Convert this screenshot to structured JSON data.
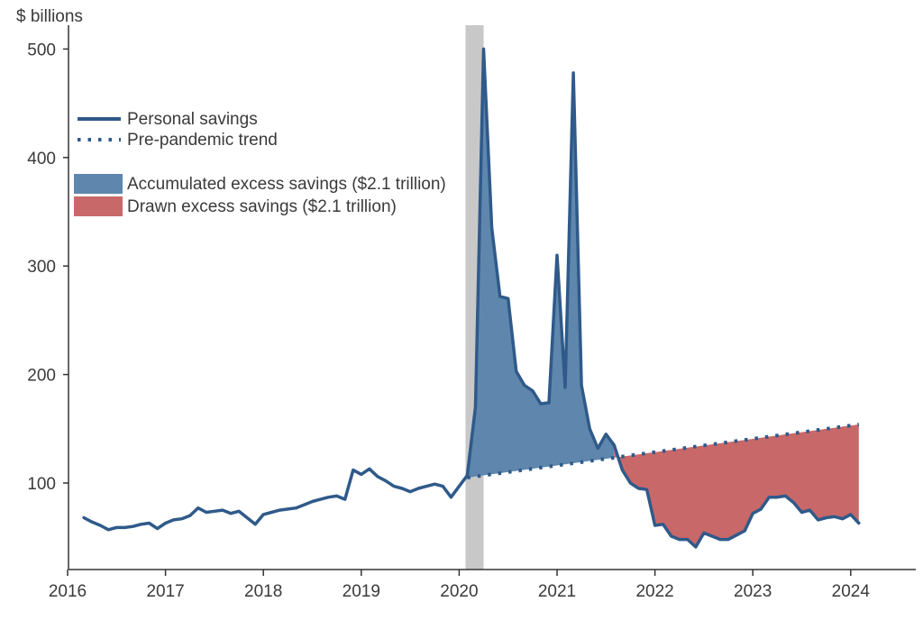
{
  "chart_data": {
    "type": "line",
    "ylabel": "$ billions",
    "ylim": [
      20,
      520
    ],
    "xlim": [
      "2015-12",
      "2024-04"
    ],
    "yticks": [
      100,
      200,
      300,
      400,
      500
    ],
    "xticks": [
      "2016",
      "2017",
      "2018",
      "2019",
      "2020",
      "2021",
      "2022",
      "2023",
      "2024"
    ],
    "legend": {
      "placement": "top-left",
      "items": [
        {
          "label": "Personal savings",
          "kind": "solid-line",
          "color": "#2f5a8a"
        },
        {
          "label": "Pre-pandemic trend",
          "kind": "dotted-line",
          "color": "#2f5a8a"
        },
        {
          "label": "Accumulated excess savings ($2.1 trillion)",
          "kind": "area",
          "color": "#5f87ad"
        },
        {
          "label": "Drawn excess savings ($2.1 trillion)",
          "kind": "area",
          "color": "#c96868"
        }
      ]
    },
    "recession_shading": {
      "start": "2020-02",
      "end": "2020-04",
      "color": "#c8c8c8"
    },
    "colors": {
      "savings_line": "#2f5a8a",
      "trend_line": "#2f5a8a",
      "accumulated_fill": "#5f87ad",
      "drawn_fill": "#c96868",
      "recession": "#c8c8c8"
    },
    "series": [
      {
        "name": "Personal savings",
        "x": [
          "2016-03",
          "2016-04",
          "2016-05",
          "2016-06",
          "2016-07",
          "2016-08",
          "2016-09",
          "2016-10",
          "2016-11",
          "2016-12",
          "2017-01",
          "2017-02",
          "2017-03",
          "2017-04",
          "2017-05",
          "2017-06",
          "2017-07",
          "2017-08",
          "2017-09",
          "2017-10",
          "2017-11",
          "2017-12",
          "2018-01",
          "2018-02",
          "2018-03",
          "2018-04",
          "2018-05",
          "2018-06",
          "2018-07",
          "2018-08",
          "2018-09",
          "2018-10",
          "2018-11",
          "2018-12",
          "2019-01",
          "2019-02",
          "2019-03",
          "2019-04",
          "2019-05",
          "2019-06",
          "2019-07",
          "2019-08",
          "2019-09",
          "2019-10",
          "2019-11",
          "2019-12",
          "2020-01",
          "2020-02",
          "2020-03",
          "2020-04",
          "2020-05",
          "2020-06",
          "2020-07",
          "2020-08",
          "2020-09",
          "2020-10",
          "2020-11",
          "2020-12",
          "2021-01",
          "2021-02",
          "2021-03",
          "2021-04",
          "2021-05",
          "2021-06",
          "2021-07",
          "2021-08",
          "2021-09",
          "2021-10",
          "2021-11",
          "2021-12",
          "2022-01",
          "2022-02",
          "2022-03",
          "2022-04",
          "2022-05",
          "2022-06",
          "2022-07",
          "2022-08",
          "2022-09",
          "2022-10",
          "2022-11",
          "2022-12",
          "2023-01",
          "2023-02",
          "2023-03",
          "2023-04",
          "2023-05",
          "2023-06",
          "2023-07",
          "2023-08",
          "2023-09",
          "2023-10",
          "2023-11",
          "2023-12",
          "2024-01",
          "2024-02"
        ],
        "values": [
          68,
          64,
          61,
          57,
          59,
          59,
          60,
          62,
          63,
          58,
          63,
          66,
          67,
          70,
          77,
          73,
          74,
          75,
          72,
          74,
          68,
          62,
          71,
          73,
          75,
          76,
          77,
          80,
          83,
          85,
          87,
          88,
          85,
          112,
          108,
          113,
          106,
          102,
          97,
          95,
          92,
          95,
          97,
          99,
          97,
          87,
          97,
          107,
          170,
          500,
          335,
          272,
          270,
          203,
          190,
          185,
          173,
          174,
          310,
          188,
          478,
          190,
          150,
          132,
          145,
          135,
          112,
          100,
          95,
          94,
          61,
          62,
          51,
          48,
          48,
          41,
          54,
          51,
          48,
          48,
          52,
          56,
          72,
          76,
          87,
          87,
          88,
          82,
          73,
          75,
          66,
          68,
          69,
          67,
          71,
          63
        ]
      },
      {
        "name": "Pre-pandemic trend",
        "x": [
          "2020-02",
          "2024-02"
        ],
        "values": [
          105,
          154
        ]
      }
    ],
    "regions": [
      {
        "label": "Accumulated excess savings ($2.1 trillion)",
        "from": "2020-02",
        "to": "2021-08"
      },
      {
        "label": "Drawn excess savings ($2.1 trillion)",
        "from": "2021-08",
        "to": "2024-02"
      }
    ]
  }
}
